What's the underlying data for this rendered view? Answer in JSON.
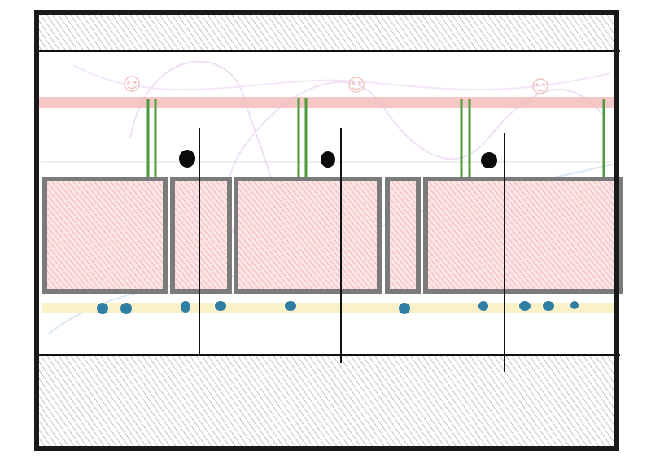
{
  "colors": {
    "frame": "#1a1a1a",
    "hatch_band": "#bdbdbd",
    "pink_band": "#f3b8b8",
    "block_fill": "#f4c4c6",
    "block_stroke": "#7b7b7b",
    "grass": "#4f9a3a",
    "dot_black": "#0b0b0b",
    "dot_blue": "#2f7ea3",
    "yellow_band": "#fbf1c8",
    "faint_curve": "#efe0f6",
    "faint_curve_blue": "#d9e7f3",
    "divider": "#111111"
  },
  "icons": [
    "smiley-icon",
    "smiley-icon",
    "smiley-icon"
  ],
  "sections": {
    "top_band": "hatched-wall",
    "bottom_band": "hatched-floor",
    "blocks": 5,
    "black_dots": 3,
    "blue_dots": 12,
    "grass_pairs": 4,
    "divider_lines": 3
  }
}
